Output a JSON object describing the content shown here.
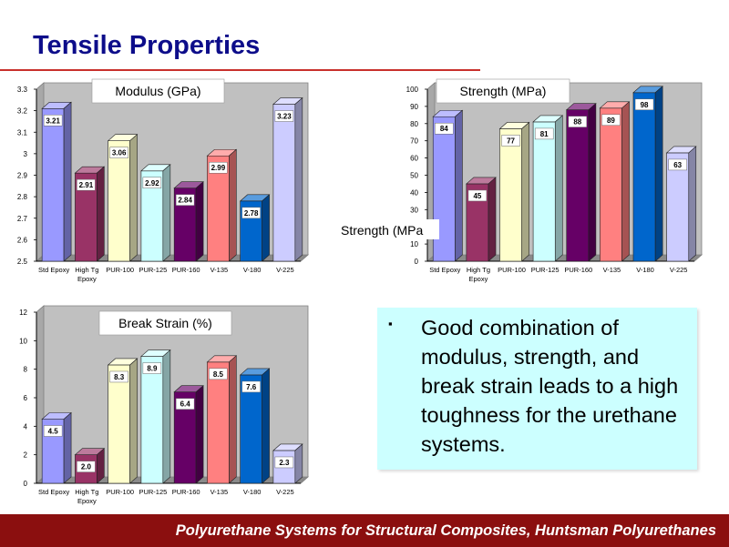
{
  "slide": {
    "title": "Tensile Properties",
    "bullet_symbol": "▪",
    "bullet_text": "Good combination of modulus, strength, and break strain leads to a high toughness for the urethane systems.",
    "footer": "Polyurethane Systems for Structural Composites, Huntsman Polyurethanes"
  },
  "colors": {
    "title": "#0d0d8a",
    "rule": "#c9302c",
    "footer_bg": "#8b0f0f",
    "plot_wall": "#c0c0c0",
    "bullet_box": "#ccffff",
    "bars": [
      "#9999ff",
      "#993366",
      "#ffffcc",
      "#ccffff",
      "#660066",
      "#ff8080",
      "#0066cc",
      "#ccccff"
    ]
  },
  "chart_data": [
    {
      "type": "bar",
      "title": "Modulus (GPa)",
      "categories": [
        "Std Epoxy",
        "High Tg Epoxy",
        "PUR-100",
        "PUR-125",
        "PUR-160",
        "V-135",
        "V-180",
        "V-225"
      ],
      "category_labels": [
        [
          "Std Epoxy"
        ],
        [
          "High Tg",
          "Epoxy"
        ],
        [
          "PUR-100"
        ],
        [
          "PUR-125"
        ],
        [
          "PUR-160"
        ],
        [
          "V-135"
        ],
        [
          "V-180"
        ],
        [
          "V-225"
        ]
      ],
      "values": [
        3.21,
        2.91,
        3.06,
        2.92,
        2.84,
        2.99,
        2.78,
        3.23
      ],
      "value_labels": [
        "3.21",
        "2.91",
        "3.06",
        "2.92",
        "2.84",
        "2.99",
        "2.78",
        "3.23"
      ],
      "ylim": [
        2.5,
        3.3
      ],
      "yticks": [
        "2.5",
        "2.6",
        "2.7",
        "2.8",
        "2.9",
        "3",
        "3.1",
        "3.2",
        "3.3"
      ],
      "ylabel": "",
      "grid": false,
      "legend": "none"
    },
    {
      "type": "bar",
      "title": "Strength (MPa)",
      "categories": [
        "Std Epoxy",
        "High Tg Epoxy",
        "PUR-100",
        "PUR-125",
        "PUR-160",
        "V-135",
        "V-180",
        "V-225"
      ],
      "category_labels": [
        [
          "Std Epoxy"
        ],
        [
          "High Tg",
          "Epoxy"
        ],
        [
          "PUR-100"
        ],
        [
          "PUR-125"
        ],
        [
          "PUR-160"
        ],
        [
          "V-135"
        ],
        [
          "V-180"
        ],
        [
          "V-225"
        ]
      ],
      "values": [
        84,
        45,
        77,
        81,
        88,
        89,
        98,
        63
      ],
      "value_labels": [
        "84",
        "45",
        "77",
        "81",
        "88",
        "89",
        "98",
        "63"
      ],
      "ylim": [
        0,
        100
      ],
      "yticks": [
        "0",
        "10",
        "20",
        "30",
        "40",
        "50",
        "60",
        "70",
        "80",
        "90",
        "100"
      ],
      "ylabel": "Strength (MPa",
      "grid": false,
      "legend": "none"
    },
    {
      "type": "bar",
      "title": "Break Strain (%)",
      "categories": [
        "Std Epoxy",
        "High Tg Epoxy",
        "PUR-100",
        "PUR-125",
        "PUR-160",
        "V-135",
        "V-180",
        "V-225"
      ],
      "category_labels": [
        [
          "Std Epoxy"
        ],
        [
          "High Tg",
          "Epoxy"
        ],
        [
          "PUR-100"
        ],
        [
          "PUR-125"
        ],
        [
          "PUR-160"
        ],
        [
          "V-135"
        ],
        [
          "V-180"
        ],
        [
          "V-225"
        ]
      ],
      "values": [
        4.5,
        2.0,
        8.3,
        8.9,
        6.4,
        8.5,
        7.6,
        2.3
      ],
      "value_labels": [
        "4.5",
        "2.0",
        "8.3",
        "8.9",
        "6.4",
        "8.5",
        "7.6",
        "2.3"
      ],
      "ylim": [
        0,
        12
      ],
      "yticks": [
        "0",
        "2",
        "4",
        "6",
        "8",
        "10",
        "12"
      ],
      "ylabel": "",
      "grid": false,
      "legend": "none"
    }
  ]
}
